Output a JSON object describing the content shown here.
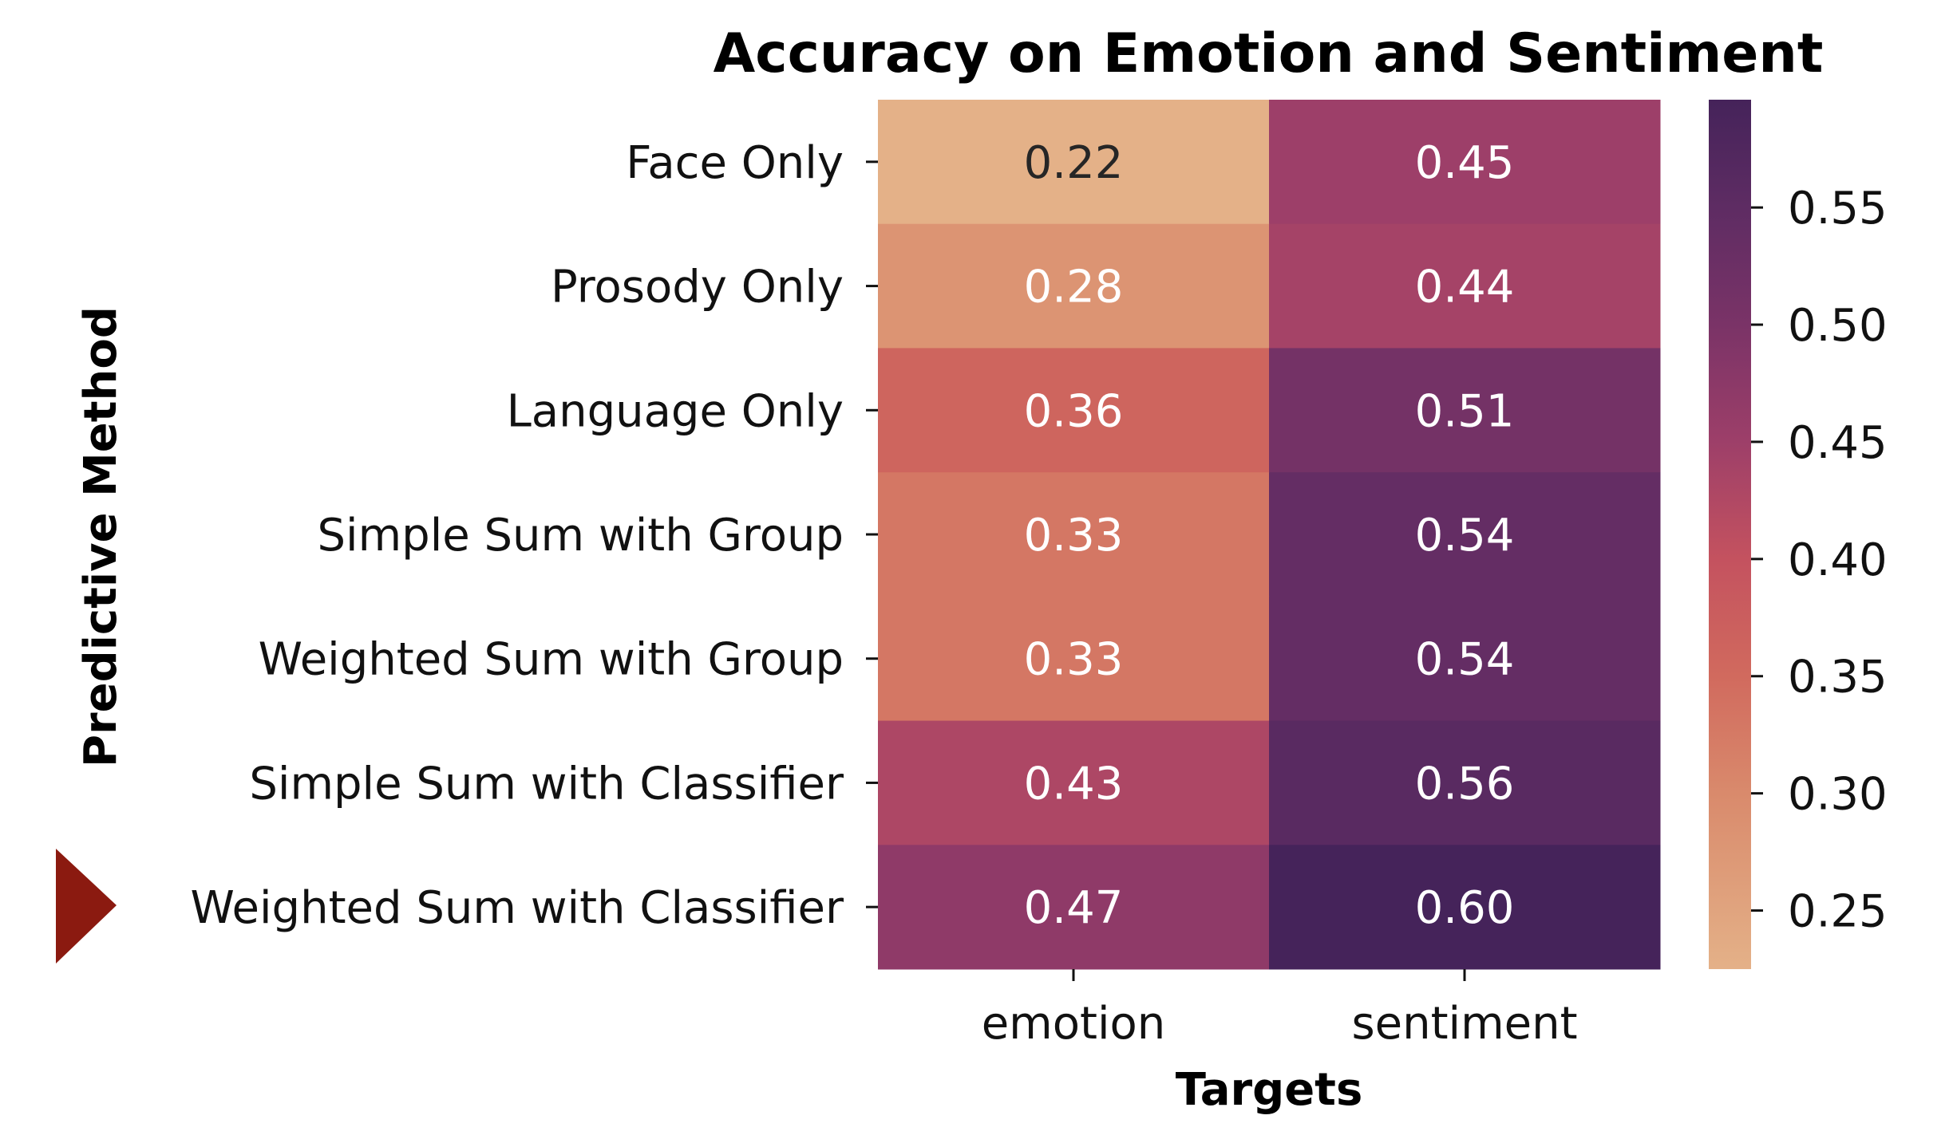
{
  "chart_data": {
    "type": "heatmap",
    "title": "Accuracy on Emotion and Sentiment",
    "xlabel": "Targets",
    "ylabel": "Predictive Method",
    "columns": [
      "emotion",
      "sentiment"
    ],
    "rows": [
      "Face Only",
      "Prosody Only",
      "Language Only",
      "Simple Sum with Group",
      "Weighted Sum with Group",
      "Simple Sum with Classifier",
      "Weighted Sum with Classifier"
    ],
    "values": [
      [
        0.22,
        0.45
      ],
      [
        0.28,
        0.44
      ],
      [
        0.36,
        0.51
      ],
      [
        0.33,
        0.54
      ],
      [
        0.33,
        0.54
      ],
      [
        0.43,
        0.56
      ],
      [
        0.47,
        0.6
      ]
    ],
    "annotations": [
      [
        "0.22",
        "0.45"
      ],
      [
        "0.28",
        "0.44"
      ],
      [
        "0.36",
        "0.51"
      ],
      [
        "0.33",
        "0.54"
      ],
      [
        "0.33",
        "0.54"
      ],
      [
        "0.43",
        "0.56"
      ],
      [
        "0.47",
        "0.60"
      ]
    ],
    "colorbar": {
      "range": [
        0.225,
        0.596
      ],
      "ticks": [
        0.25,
        0.3,
        0.35,
        0.4,
        0.45,
        0.5,
        0.55
      ],
      "tick_labels": [
        "0.25",
        "0.30",
        "0.35",
        "0.40",
        "0.45",
        "0.50",
        "0.55"
      ],
      "colormap": "flare",
      "stops": [
        [
          0.225,
          "#e4b188"
        ],
        [
          0.3,
          "#d98a6c"
        ],
        [
          0.35,
          "#d16a5e"
        ],
        [
          0.4,
          "#c4525f"
        ],
        [
          0.45,
          "#9d3f69"
        ],
        [
          0.5,
          "#7a3367"
        ],
        [
          0.55,
          "#5e2c63"
        ],
        [
          0.596,
          "#45235a"
        ]
      ]
    },
    "highlighted_row": "Weighted Sum with Classifier",
    "highlight_marker": {
      "shape": "triangle-right",
      "color": "#8b1a10"
    },
    "annotation_colors": {
      "dark": "#262626",
      "light": "#ffffff"
    }
  }
}
